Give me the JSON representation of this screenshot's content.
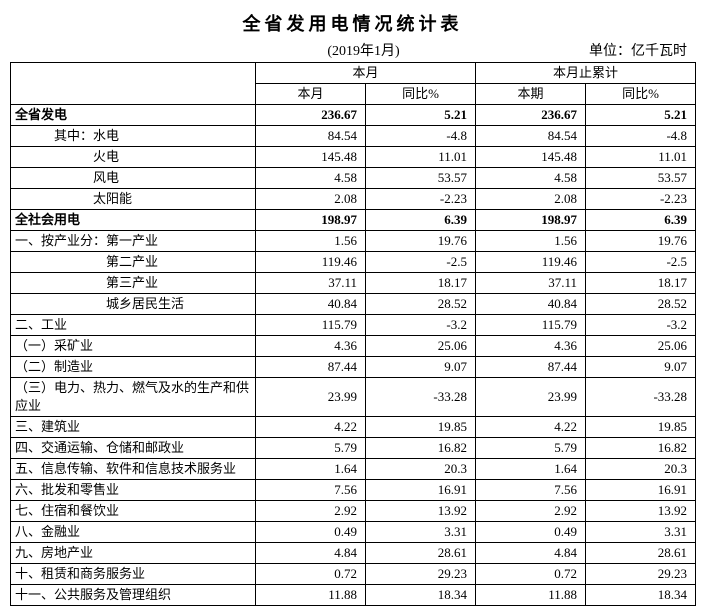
{
  "title": "全省发用电情况统计表",
  "period": "(2019年1月)",
  "unit": "单位：亿千瓦时",
  "headers": {
    "group1": "本月",
    "group2": "本月止累计",
    "sub1": "本月",
    "sub2": "同比%",
    "sub3": "本期",
    "sub4": "同比%"
  },
  "rows": [
    {
      "label": "全省发电",
      "v1": "236.67",
      "v2": "5.21",
      "v3": "236.67",
      "v4": "5.21",
      "bold": true
    },
    {
      "label": "　　　其中：水电",
      "v1": "84.54",
      "v2": "-4.8",
      "v3": "84.54",
      "v4": "-4.8"
    },
    {
      "label": "　　　　　　火电",
      "v1": "145.48",
      "v2": "11.01",
      "v3": "145.48",
      "v4": "11.01"
    },
    {
      "label": "　　　　　　风电",
      "v1": "4.58",
      "v2": "53.57",
      "v3": "4.58",
      "v4": "53.57"
    },
    {
      "label": "　　　　　　太阳能",
      "v1": "2.08",
      "v2": "-2.23",
      "v3": "2.08",
      "v4": "-2.23"
    },
    {
      "label": "全社会用电",
      "v1": "198.97",
      "v2": "6.39",
      "v3": "198.97",
      "v4": "6.39",
      "bold": true
    },
    {
      "label": "一、按产业分：第一产业",
      "v1": "1.56",
      "v2": "19.76",
      "v3": "1.56",
      "v4": "19.76"
    },
    {
      "label": "　　　　　　　第二产业",
      "v1": "119.46",
      "v2": "-2.5",
      "v3": "119.46",
      "v4": "-2.5"
    },
    {
      "label": "　　　　　　　第三产业",
      "v1": "37.11",
      "v2": "18.17",
      "v3": "37.11",
      "v4": "18.17"
    },
    {
      "label": "　　　　　　　城乡居民生活",
      "v1": "40.84",
      "v2": "28.52",
      "v3": "40.84",
      "v4": "28.52"
    },
    {
      "label": "二、工业",
      "v1": "115.79",
      "v2": "-3.2",
      "v3": "115.79",
      "v4": "-3.2"
    },
    {
      "label": "（一）采矿业",
      "v1": "4.36",
      "v2": "25.06",
      "v3": "4.36",
      "v4": "25.06"
    },
    {
      "label": "（二）制造业",
      "v1": "87.44",
      "v2": "9.07",
      "v3": "87.44",
      "v4": "9.07"
    },
    {
      "label": "（三）电力、热力、燃气及水的生产和供应业",
      "v1": "23.99",
      "v2": "-33.28",
      "v3": "23.99",
      "v4": "-33.28",
      "tall": true
    },
    {
      "label": "三、建筑业",
      "v1": "4.22",
      "v2": "19.85",
      "v3": "4.22",
      "v4": "19.85"
    },
    {
      "label": "四、交通运输、仓储和邮政业",
      "v1": "5.79",
      "v2": "16.82",
      "v3": "5.79",
      "v4": "16.82"
    },
    {
      "label": "五、信息传输、软件和信息技术服务业",
      "v1": "1.64",
      "v2": "20.3",
      "v3": "1.64",
      "v4": "20.3"
    },
    {
      "label": "六、批发和零售业",
      "v1": "7.56",
      "v2": "16.91",
      "v3": "7.56",
      "v4": "16.91"
    },
    {
      "label": "七、住宿和餐饮业",
      "v1": "2.92",
      "v2": "13.92",
      "v3": "2.92",
      "v4": "13.92"
    },
    {
      "label": "八、金融业",
      "v1": "0.49",
      "v2": "3.31",
      "v3": "0.49",
      "v4": "3.31"
    },
    {
      "label": "九、房地产业",
      "v1": "4.84",
      "v2": "28.61",
      "v3": "4.84",
      "v4": "28.61"
    },
    {
      "label": "十、租赁和商务服务业",
      "v1": "0.72",
      "v2": "29.23",
      "v3": "0.72",
      "v4": "29.23"
    },
    {
      "label": "十一、公共服务及管理组织",
      "v1": "11.88",
      "v2": "18.34",
      "v3": "11.88",
      "v4": "18.34"
    }
  ]
}
